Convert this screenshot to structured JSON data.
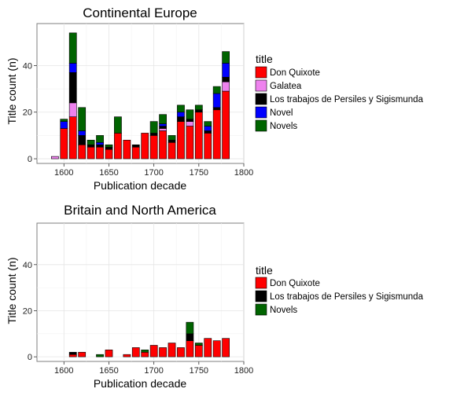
{
  "chart_data": [
    {
      "type": "bar",
      "stacked": true,
      "title": "Continental Europe",
      "xlabel": "Publication decade",
      "ylabel": "Title count (n)",
      "xlim": [
        1570,
        1800
      ],
      "ylim": [
        -2,
        58
      ],
      "xticks": [
        1600,
        1650,
        1700,
        1750,
        1800
      ],
      "yticks": [
        0,
        20,
        40
      ],
      "bar_width": 8,
      "grid": true,
      "legend_position": "right",
      "legend_title": "title",
      "x": [
        1590,
        1600,
        1610,
        1620,
        1630,
        1640,
        1650,
        1660,
        1670,
        1680,
        1690,
        1700,
        1710,
        1720,
        1730,
        1740,
        1750,
        1760,
        1770,
        1780
      ],
      "series": [
        {
          "name": "Don Quixote",
          "color": "#ff0000",
          "values": [
            0,
            13,
            18,
            6,
            5,
            5,
            4,
            11,
            8,
            5,
            11,
            10,
            12,
            7,
            16,
            14,
            20,
            11,
            21,
            29
          ]
        },
        {
          "name": "Galatea",
          "color": "#ee82ee",
          "values": [
            1,
            0,
            6,
            0,
            0,
            0,
            0,
            0,
            0,
            0,
            0,
            0,
            1,
            0,
            0,
            2,
            0,
            0,
            0,
            4
          ]
        },
        {
          "name": "Los trabajos de Persiles y Sigismunda",
          "color": "#000000",
          "values": [
            0,
            0,
            13,
            4,
            1,
            1,
            1,
            0,
            0,
            1,
            0,
            1,
            1,
            1,
            2,
            1,
            1,
            1,
            1,
            2
          ]
        },
        {
          "name": "Novel",
          "color": "#0000ff",
          "values": [
            0,
            3,
            4,
            2,
            0,
            1,
            0,
            0,
            0,
            0,
            0,
            0,
            1,
            0,
            2,
            0,
            0,
            2,
            6,
            6
          ]
        },
        {
          "name": "Novels",
          "color": "#006400",
          "values": [
            0,
            1,
            13,
            10,
            2,
            3,
            1,
            7,
            0,
            0,
            0,
            5,
            4,
            2,
            3,
            4,
            2,
            2,
            3,
            5
          ]
        }
      ]
    },
    {
      "type": "bar",
      "stacked": true,
      "title": "Britain and North America",
      "xlabel": "Publication decade",
      "ylabel": "Title count (n)",
      "xlim": [
        1570,
        1800
      ],
      "ylim": [
        -2,
        58
      ],
      "xticks": [
        1600,
        1650,
        1700,
        1750,
        1800
      ],
      "yticks": [
        0,
        20,
        40
      ],
      "bar_width": 8,
      "grid": true,
      "legend_position": "right",
      "legend_title": "title",
      "x": [
        1610,
        1620,
        1640,
        1650,
        1670,
        1680,
        1690,
        1700,
        1710,
        1720,
        1730,
        1740,
        1750,
        1760,
        1770,
        1780
      ],
      "series": [
        {
          "name": "Don Quixote",
          "color": "#ff0000",
          "values": [
            1,
            2,
            0,
            3,
            1,
            4,
            2,
            5,
            4,
            6,
            4,
            7,
            5,
            8,
            7,
            8
          ]
        },
        {
          "name": "Los trabajos de Persiles y Sigismunda",
          "color": "#000000",
          "values": [
            1,
            0,
            0,
            0,
            0,
            0,
            0,
            0,
            0,
            0,
            0,
            3,
            0,
            0,
            0,
            0
          ]
        },
        {
          "name": "Novels",
          "color": "#006400",
          "values": [
            0,
            0,
            1,
            0,
            0,
            0,
            1,
            0,
            0,
            0,
            0,
            5,
            1,
            0,
            0,
            0
          ]
        }
      ]
    }
  ]
}
